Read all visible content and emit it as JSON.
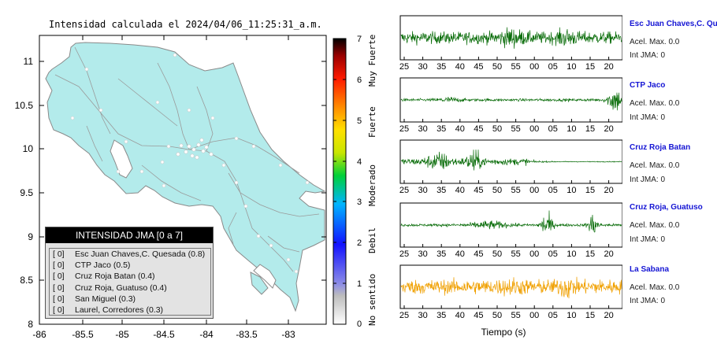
{
  "map": {
    "title": "Intensidad calculada el 2024/04/06_11:25:31_a.m.",
    "x_ticks": [
      "-86",
      "-85.5",
      "-85",
      "-84.5",
      "-84",
      "-83.5",
      "-83"
    ],
    "y_ticks": [
      "11",
      "10.5",
      "10",
      "9.5",
      "9",
      "8.5",
      "8"
    ]
  },
  "legend": {
    "title": "INTENSIDAD JMA [0 a 7]",
    "items": [
      {
        "level": "[ 0]",
        "label": "Esc Juan Chaves,C. Quesada (0.8)"
      },
      {
        "level": "[ 0]",
        "label": "CTP Jaco (0.5)"
      },
      {
        "level": "[ 0]",
        "label": "Cruz Roja Batan (0.4)"
      },
      {
        "level": "[ 0]",
        "label": "Cruz Roja, Guatuso (0.4)"
      },
      {
        "level": "[ 0]",
        "label": "San Miguel (0.3)"
      },
      {
        "level": "[ 0]",
        "label": "Laurel, Corredores (0.3)"
      }
    ]
  },
  "colorscale": {
    "ticks": [
      "7",
      "6",
      "5",
      "4",
      "3",
      "2",
      "1",
      "0"
    ],
    "words": [
      "Muy Fuerte",
      "Fuerte",
      "Moderado",
      "Debil",
      "No sentido"
    ]
  },
  "waveforms": {
    "x_ticks": [
      "25",
      "30",
      "35",
      "40",
      "45",
      "50",
      "55",
      "00",
      "05",
      "10",
      "15",
      "20"
    ],
    "xlabel": "Tiempo (s)",
    "stations": [
      {
        "name": "Esc Juan Chaves,C. Qu",
        "acel": "Acel. Max. 0.0",
        "jma": "Int JMA: 0",
        "color": "#0c6e0c"
      },
      {
        "name": "CTP Jaco",
        "acel": "Acel. Max. 0.0",
        "jma": "Int JMA: 0",
        "color": "#0c6e0c"
      },
      {
        "name": "Cruz Roja Batan",
        "acel": "Acel. Max. 0.0",
        "jma": "Int JMA: 0",
        "color": "#0c6e0c"
      },
      {
        "name": "Cruz Roja, Guatuso",
        "acel": "Acel. Max. 0.0",
        "jma": "Int JMA: 0",
        "color": "#0c6e0c"
      },
      {
        "name": "La Sabana",
        "acel": "Acel. Max. 0.0",
        "jma": "Int JMA: 0",
        "color": "#f0a000"
      }
    ]
  },
  "chart_data": [
    {
      "type": "map",
      "title": "Intensidad calculada el 2024/04/06_11:25:31_a.m.",
      "xlim": [
        -86,
        -82.6
      ],
      "ylim": [
        8,
        11.3
      ],
      "x_ticks": [
        -86,
        -85.5,
        -85,
        -84.5,
        -84,
        -83.5,
        -83
      ],
      "y_ticks": [
        8,
        8.5,
        9,
        9.5,
        10,
        10.5,
        11
      ],
      "fill_color": "#b3ebeb",
      "colorbar": {
        "min": 0,
        "max": 7,
        "labels": [
          "No sentido",
          "Debil",
          "Moderado",
          "Fuerte",
          "Muy Fuerte"
        ]
      }
    },
    {
      "type": "line",
      "xlabel": "Tiempo (s)",
      "x_tick_labels": [
        "25",
        "30",
        "35",
        "40",
        "45",
        "50",
        "55",
        "00",
        "05",
        "10",
        "15",
        "20"
      ],
      "series": [
        {
          "name": "Esc Juan Chaves,C. Qu",
          "acel_max": 0.0,
          "int_jma": 0
        },
        {
          "name": "CTP Jaco",
          "acel_max": 0.0,
          "int_jma": 0
        },
        {
          "name": "Cruz Roja Batan",
          "acel_max": 0.0,
          "int_jma": 0
        },
        {
          "name": "Cruz Roja, Guatuso",
          "acel_max": 0.0,
          "int_jma": 0
        },
        {
          "name": "La Sabana",
          "acel_max": 0.0,
          "int_jma": 0
        }
      ]
    }
  ]
}
